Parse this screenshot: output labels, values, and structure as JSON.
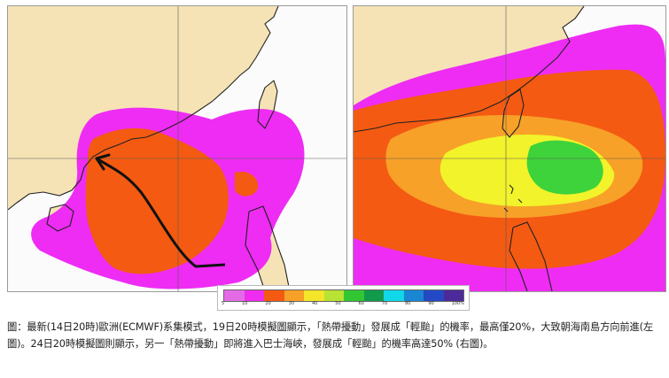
{
  "colors": {
    "land": "#f5e3b5",
    "sea": "#fbfbfb",
    "coast": "#222222",
    "magenta": "#ee2cf4",
    "orange_red": "#f45a12",
    "orange": "#f7a128",
    "yellow": "#f2f32a",
    "green": "#3ed33a",
    "track_arrow": "#111111"
  },
  "legend": {
    "colors": [
      "#e56be6",
      "#ef2df0",
      "#f45a12",
      "#f7a128",
      "#f5e52a",
      "#b8e234",
      "#33c633",
      "#129a4c",
      "#10d8e8",
      "#1a86d4",
      "#2349c4",
      "#4d2a9a"
    ],
    "ticks": [
      "5",
      "10",
      "20",
      "30",
      "40",
      "50",
      "60",
      "70",
      "80",
      "90",
      "100%"
    ]
  },
  "caption": "圖：最新(14日20時)歐洲(ECMWF)系集模式，19日20時模擬圖顯示，「熱帶擾動」發展成「輕颱」的機率，最高僅20%，大致朝海南島方向前進(左圖)。24日20時模擬圖則顯示，另一「熱帶擾動」即將進入巴士海峽，發展成「輕颱」的機率高達50% (右圖)。"
}
